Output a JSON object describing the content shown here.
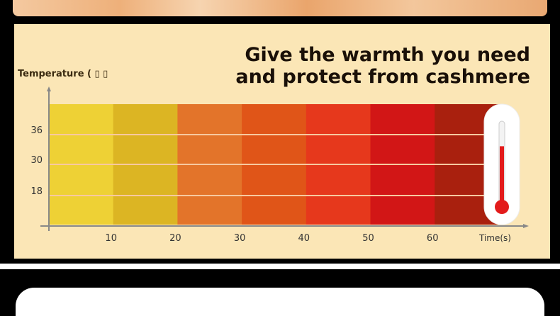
{
  "headline": [
    "Give the warmth you need",
    "and protect from cashmere"
  ],
  "chart_data": {
    "type": "heatmap",
    "title": "Give the warmth you need and protect from cashmere",
    "ylabel": "Temperature ( ▯ ▯",
    "xlabel": "Time(s)",
    "x_ticks": [
      "10",
      "20",
      "30",
      "40",
      "50",
      "60"
    ],
    "y_ticks": [
      "18",
      "30",
      "36"
    ],
    "bands": [
      {
        "from": 0,
        "to": 10,
        "color": "#eed135"
      },
      {
        "from": 10,
        "to": 20,
        "color": "#dcb523"
      },
      {
        "from": 20,
        "to": 30,
        "color": "#e3742a"
      },
      {
        "from": 30,
        "to": 40,
        "color": "#e05518"
      },
      {
        "from": 40,
        "to": 50,
        "color": "#e6381c"
      },
      {
        "from": 50,
        "to": 60,
        "color": "#d21616"
      },
      {
        "from": 60,
        "to": 70,
        "color": "#a9200e"
      }
    ],
    "thermometer_level": 0.7,
    "grid": true
  }
}
